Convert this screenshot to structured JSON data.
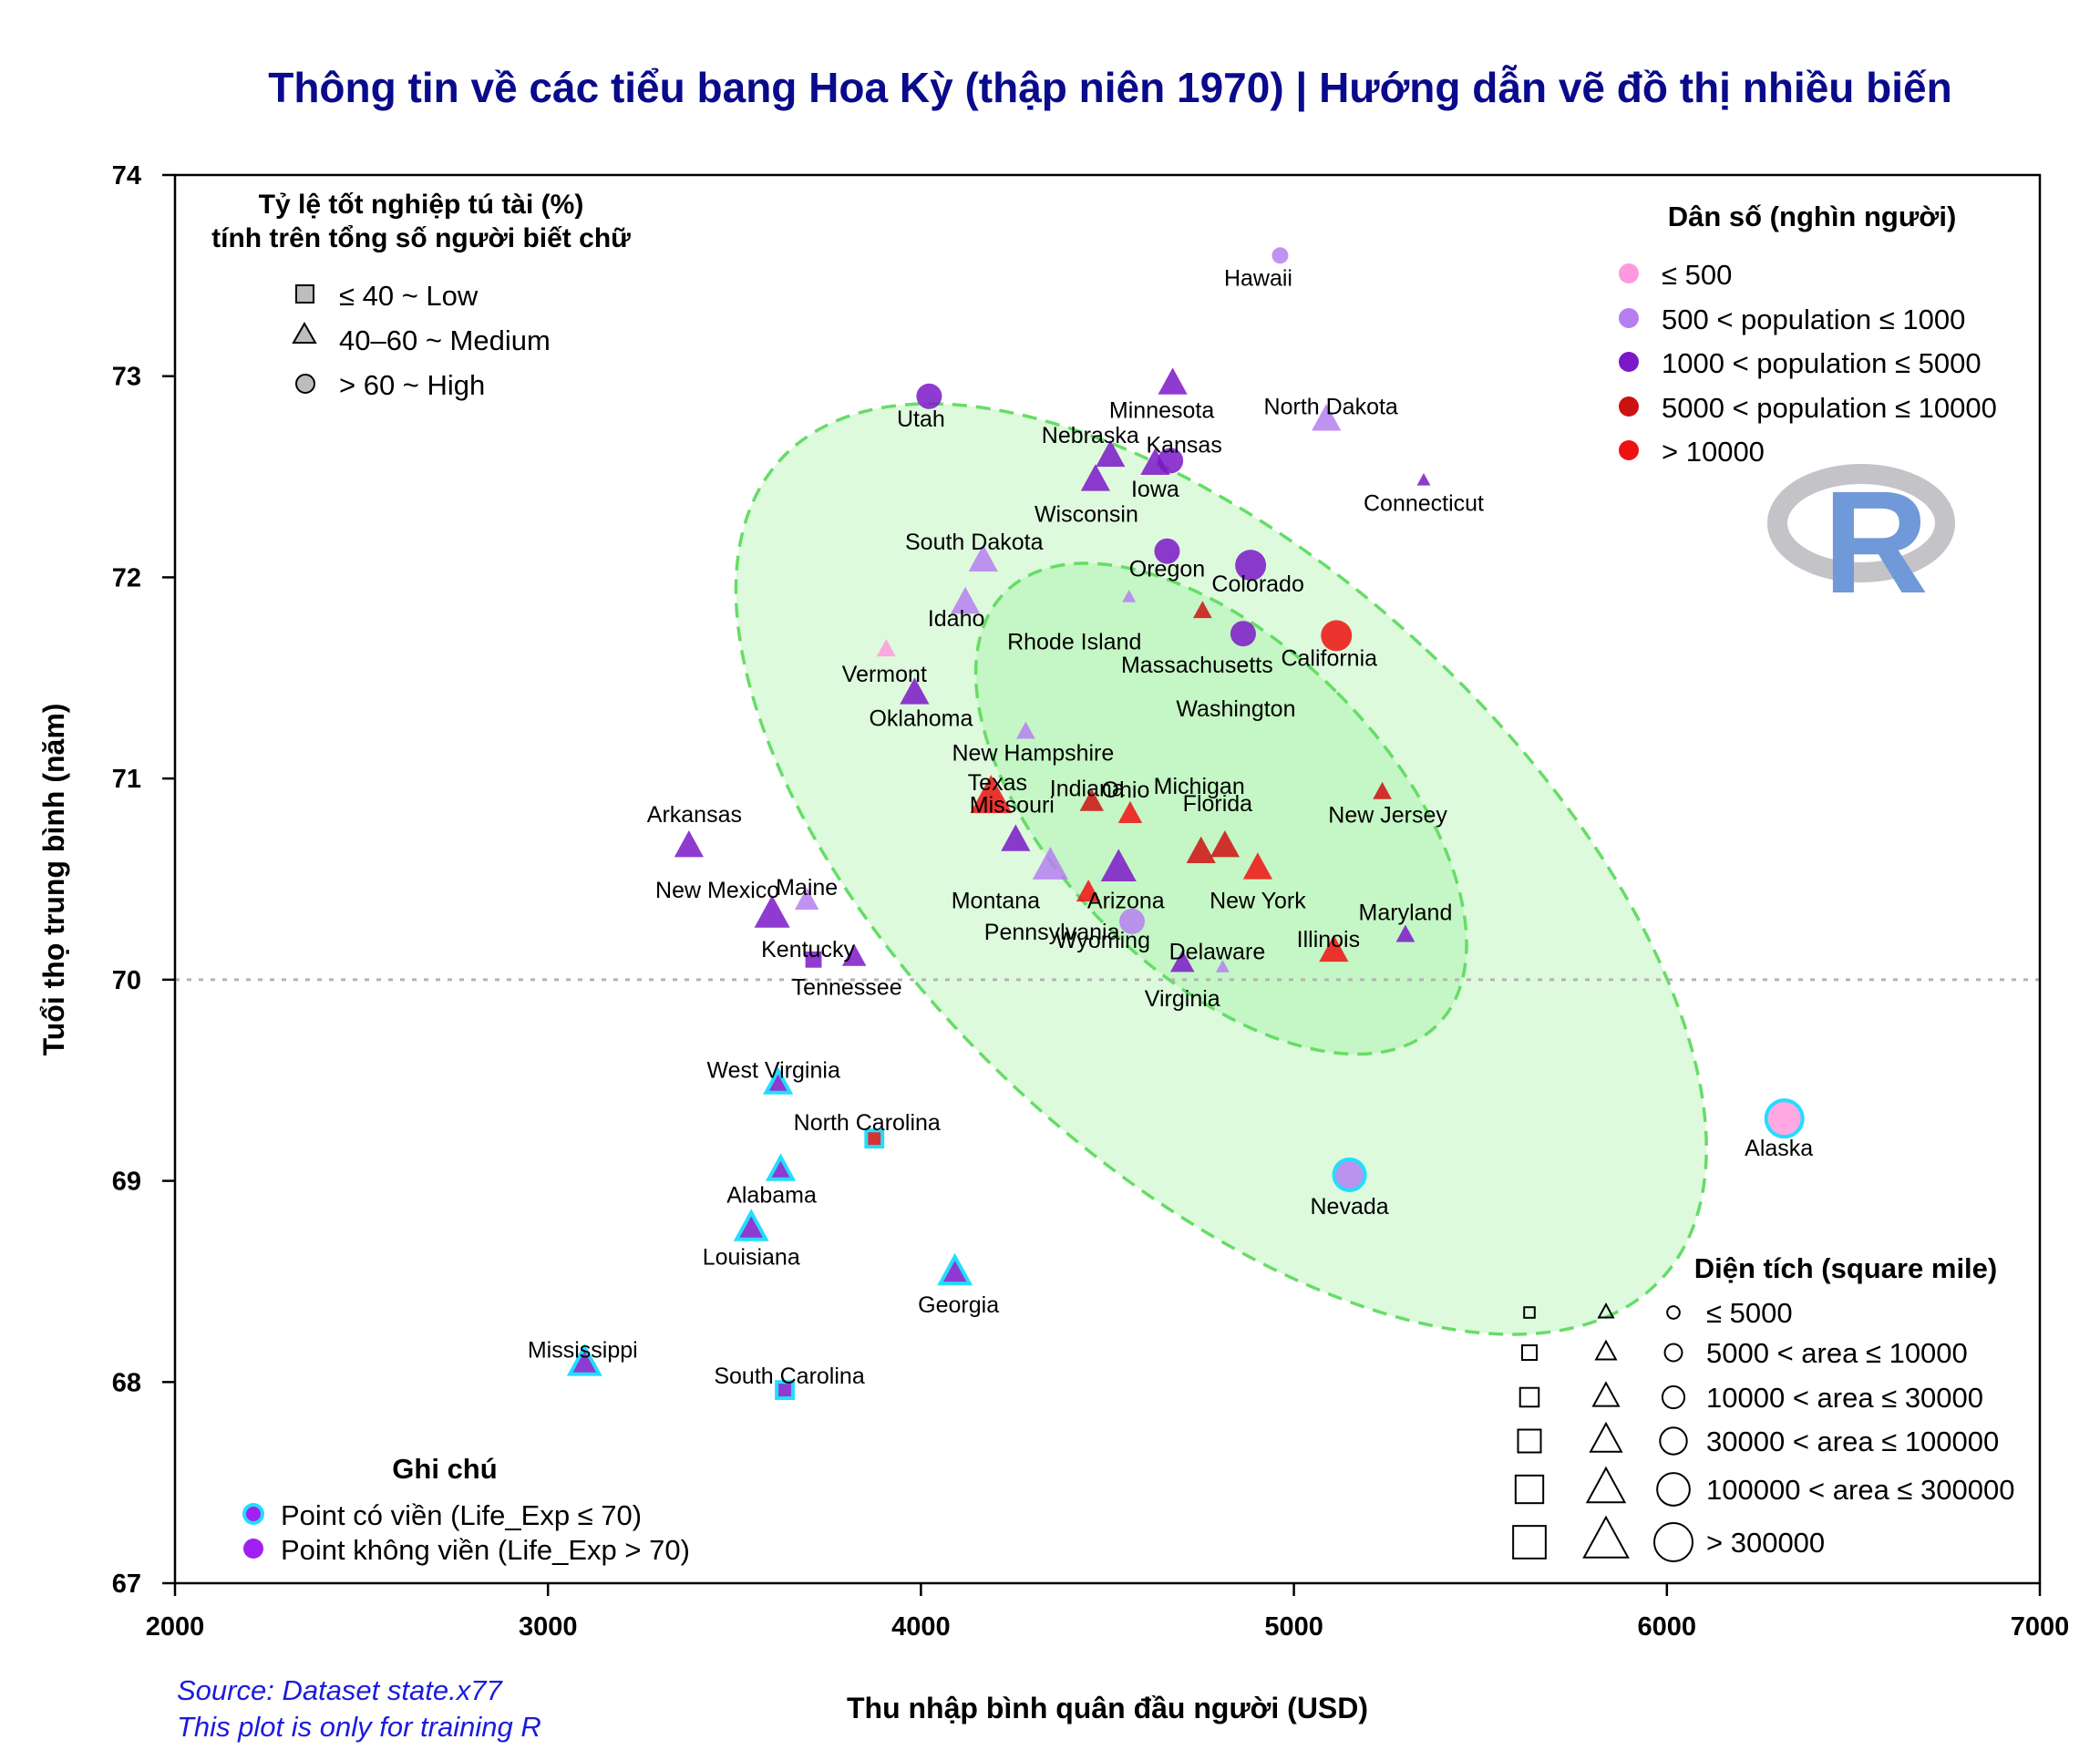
{
  "chart_data": {
    "type": "scatter",
    "title": "Thông tin về các tiểu bang Hoa Kỳ (thập niên 1970) | Hướng dẫn vẽ đồ thị nhiều biến",
    "xlabel": "Thu nhập bình quân đầu người (USD)",
    "ylabel": "Tuổi thọ trung bình (năm)",
    "xlim": [
      2000,
      7000
    ],
    "ylim": [
      67,
      74
    ],
    "x_ticks": [
      "2000",
      "3000",
      "4000",
      "5000",
      "6000",
      "7000"
    ],
    "y_ticks": [
      "67",
      "68",
      "69",
      "70",
      "71",
      "72",
      "73",
      "74"
    ],
    "reference_line_y": 70,
    "grid": false,
    "source_lines": [
      "Source: Dataset state.x77",
      "This plot is only for training R"
    ],
    "logo": "R",
    "colors": {
      "pop_le_500": "#ff99dd",
      "pop_500_1000": "#b57ff0",
      "pop_1000_5000": "#7b18c8",
      "pop_5000_10000": "#cc1111",
      "pop_gt_10000": "#ee1111",
      "outline_low_life": "#22ddff",
      "ellipse_fill": "#90ee90",
      "ellipse_stroke": "#66dd66"
    },
    "legend_grad": {
      "title_line1": "Tỷ lệ tốt nghiệp tú tài (%)",
      "title_line2": "tính trên tổng số người biết chữ",
      "position": "top-left",
      "items": [
        {
          "shape": "square",
          "label": "≤ 40 ~ Low"
        },
        {
          "shape": "triangle",
          "label": "40–60 ~ Medium"
        },
        {
          "shape": "circle",
          "label": "> 60 ~ High"
        }
      ]
    },
    "legend_pop": {
      "title": "Dân số (nghìn người)",
      "position": "top-right",
      "items": [
        {
          "color": "#ff99dd",
          "label": "≤ 500"
        },
        {
          "color": "#b57ff0",
          "label": "500 < population ≤ 1000"
        },
        {
          "color": "#7b18c8",
          "label": "1000 < population ≤ 5000"
        },
        {
          "color": "#cc1111",
          "label": "5000 < population ≤ 10000"
        },
        {
          "color": "#ee1111",
          "label": "> 10000"
        }
      ]
    },
    "legend_area": {
      "title": "Diện tích (square mile)",
      "position": "bottom-right",
      "items": [
        {
          "size": 1,
          "label": "≤ 5000"
        },
        {
          "size": 2,
          "label": "5000 < area ≤ 10000"
        },
        {
          "size": 3,
          "label": "10000 < area ≤ 30000"
        },
        {
          "size": 4,
          "label": "30000 < area ≤ 100000"
        },
        {
          "size": 5,
          "label": "100000 < area ≤ 300000"
        },
        {
          "size": 6,
          "label": "> 300000"
        }
      ]
    },
    "legend_note": {
      "title": "Ghi chú",
      "position": "bottom-left",
      "items": [
        {
          "outlined": true,
          "label": "Point có viền (Life_Exp ≤ 70)"
        },
        {
          "outlined": false,
          "label": "Point không viền (Life_Exp > 70)"
        }
      ]
    },
    "ellipses": [
      {
        "cx": 4805,
        "cy": 70.55,
        "rx_income": 805,
        "ry_life": 2.99,
        "angle_deg": 47
      },
      {
        "cx": 4805,
        "cy": 70.85,
        "rx_income": 440,
        "ry_life": 1.52,
        "angle_deg": 45
      }
    ],
    "points": [
      {
        "state": "Alabama",
        "income": 3624,
        "life_exp": 69.05,
        "grad": "medium",
        "pop": 3,
        "area": 3
      },
      {
        "state": "Alaska",
        "income": 6315,
        "life_exp": 69.31,
        "grad": "high",
        "pop": 1,
        "area": 6
      },
      {
        "state": "Arizona",
        "income": 4530,
        "life_exp": 70.55,
        "grad": "medium",
        "pop": 3,
        "area": 5
      },
      {
        "state": "Arkansas",
        "income": 3378,
        "life_exp": 70.66,
        "grad": "medium",
        "pop": 3,
        "area": 4
      },
      {
        "state": "California",
        "income": 5114,
        "life_exp": 71.71,
        "grad": "high",
        "pop": 5,
        "area": 5
      },
      {
        "state": "Colorado",
        "income": 4884,
        "life_exp": 72.06,
        "grad": "high",
        "pop": 3,
        "area": 5
      },
      {
        "state": "Connecticut",
        "income": 5348,
        "life_exp": 72.48,
        "grad": "medium",
        "pop": 3,
        "area": 1
      },
      {
        "state": "Delaware",
        "income": 4809,
        "life_exp": 70.06,
        "grad": "medium",
        "pop": 2,
        "area": 1
      },
      {
        "state": "Florida",
        "income": 4815,
        "life_exp": 70.66,
        "grad": "medium",
        "pop": 4,
        "area": 4
      },
      {
        "state": "Georgia",
        "income": 4091,
        "life_exp": 68.54,
        "grad": "medium",
        "pop": 3,
        "area": 4
      },
      {
        "state": "Hawaii",
        "income": 4963,
        "life_exp": 73.6,
        "grad": "high",
        "pop": 2,
        "area": 2
      },
      {
        "state": "Idaho",
        "income": 4119,
        "life_exp": 71.87,
        "grad": "medium",
        "pop": 2,
        "area": 4
      },
      {
        "state": "Illinois",
        "income": 5107,
        "life_exp": 70.14,
        "grad": "medium",
        "pop": 5,
        "area": 4
      },
      {
        "state": "Indiana",
        "income": 4458,
        "life_exp": 70.88,
        "grad": "medium",
        "pop": 4,
        "area": 3
      },
      {
        "state": "Iowa",
        "income": 4628,
        "life_exp": 72.56,
        "grad": "medium",
        "pop": 3,
        "area": 4
      },
      {
        "state": "Kansas",
        "income": 4669,
        "life_exp": 72.58,
        "grad": "high",
        "pop": 3,
        "area": 4
      },
      {
        "state": "Kentucky",
        "income": 3712,
        "life_exp": 70.1,
        "grad": "low",
        "pop": 3,
        "area": 3
      },
      {
        "state": "Louisiana",
        "income": 3545,
        "life_exp": 68.76,
        "grad": "medium",
        "pop": 3,
        "area": 4
      },
      {
        "state": "Maine",
        "income": 3694,
        "life_exp": 70.39,
        "grad": "medium",
        "pop": 2,
        "area": 3
      },
      {
        "state": "Maryland",
        "income": 5299,
        "life_exp": 70.22,
        "grad": "medium",
        "pop": 3,
        "area": 2
      },
      {
        "state": "Massachusetts",
        "income": 4755,
        "life_exp": 71.83,
        "grad": "medium",
        "pop": 4,
        "area": 2
      },
      {
        "state": "Michigan",
        "income": 4751,
        "life_exp": 70.63,
        "grad": "medium",
        "pop": 4,
        "area": 4
      },
      {
        "state": "Minnesota",
        "income": 4675,
        "life_exp": 72.96,
        "grad": "medium",
        "pop": 3,
        "area": 4
      },
      {
        "state": "Mississippi",
        "income": 3098,
        "life_exp": 68.09,
        "grad": "medium",
        "pop": 3,
        "area": 4
      },
      {
        "state": "Missouri",
        "income": 4254,
        "life_exp": 70.69,
        "grad": "medium",
        "pop": 3,
        "area": 4
      },
      {
        "state": "Montana",
        "income": 4347,
        "life_exp": 70.56,
        "grad": "medium",
        "pop": 2,
        "area": 5
      },
      {
        "state": "Nebraska",
        "income": 4508,
        "life_exp": 72.6,
        "grad": "medium",
        "pop": 3,
        "area": 4
      },
      {
        "state": "Nevada",
        "income": 5149,
        "life_exp": 69.03,
        "grad": "high",
        "pop": 2,
        "area": 5
      },
      {
        "state": "New Hampshire",
        "income": 4281,
        "life_exp": 71.23,
        "grad": "medium",
        "pop": 2,
        "area": 2
      },
      {
        "state": "New Jersey",
        "income": 5237,
        "life_exp": 70.93,
        "grad": "medium",
        "pop": 4,
        "area": 2
      },
      {
        "state": "New Mexico",
        "income": 3601,
        "life_exp": 70.32,
        "grad": "medium",
        "pop": 3,
        "area": 5
      },
      {
        "state": "New York",
        "income": 4903,
        "life_exp": 70.55,
        "grad": "medium",
        "pop": 5,
        "area": 4
      },
      {
        "state": "North Carolina",
        "income": 3875,
        "life_exp": 69.21,
        "grad": "low",
        "pop": 4,
        "area": 3
      },
      {
        "state": "North Dakota",
        "income": 5087,
        "life_exp": 72.78,
        "grad": "medium",
        "pop": 2,
        "area": 4
      },
      {
        "state": "Ohio",
        "income": 4561,
        "life_exp": 70.82,
        "grad": "medium",
        "pop": 5,
        "area": 3
      },
      {
        "state": "Oklahoma",
        "income": 3983,
        "life_exp": 71.42,
        "grad": "medium",
        "pop": 3,
        "area": 4
      },
      {
        "state": "Oregon",
        "income": 4660,
        "life_exp": 72.13,
        "grad": "high",
        "pop": 3,
        "area": 4
      },
      {
        "state": "Pennsylvania",
        "income": 4449,
        "life_exp": 70.43,
        "grad": "medium",
        "pop": 5,
        "area": 3
      },
      {
        "state": "Rhode Island",
        "income": 4558,
        "life_exp": 71.9,
        "grad": "medium",
        "pop": 2,
        "area": 1
      },
      {
        "state": "South Carolina",
        "income": 3635,
        "life_exp": 67.96,
        "grad": "low",
        "pop": 3,
        "area": 3
      },
      {
        "state": "South Dakota",
        "income": 4167,
        "life_exp": 72.08,
        "grad": "medium",
        "pop": 2,
        "area": 4
      },
      {
        "state": "Tennessee",
        "income": 3821,
        "life_exp": 70.11,
        "grad": "medium",
        "pop": 3,
        "area": 3
      },
      {
        "state": "Texas",
        "income": 4188,
        "life_exp": 70.9,
        "grad": "medium",
        "pop": 5,
        "area": 6
      },
      {
        "state": "Utah",
        "income": 4022,
        "life_exp": 72.9,
        "grad": "high",
        "pop": 3,
        "area": 4
      },
      {
        "state": "Vermont",
        "income": 3907,
        "life_exp": 71.64,
        "grad": "medium",
        "pop": 1,
        "area": 2
      },
      {
        "state": "Virginia",
        "income": 4701,
        "life_exp": 70.08,
        "grad": "medium",
        "pop": 3,
        "area": 3
      },
      {
        "state": "Washington",
        "income": 4864,
        "life_exp": 71.72,
        "grad": "high",
        "pop": 3,
        "area": 4
      },
      {
        "state": "West Virginia",
        "income": 3617,
        "life_exp": 69.48,
        "grad": "medium",
        "pop": 3,
        "area": 3
      },
      {
        "state": "Wisconsin",
        "income": 4468,
        "life_exp": 72.48,
        "grad": "medium",
        "pop": 3,
        "area": 4
      },
      {
        "state": "Wyoming",
        "income": 4566,
        "life_exp": 70.29,
        "grad": "high",
        "pop": 2,
        "area": 4
      }
    ],
    "label_offsets": {
      "Alabama": [
        -10,
        26
      ],
      "Alaska": [
        -6,
        32
      ],
      "Arizona": [
        8,
        34
      ],
      "Arkansas": [
        6,
        -36
      ],
      "California": [
        -8,
        24
      ],
      "Colorado": [
        8,
        20
      ],
      "Connecticut": [
        0,
        24
      ],
      "Delaware": [
        -6,
        -18
      ],
      "Florida": [
        -8,
        -48
      ],
      "Georgia": [
        4,
        34
      ],
      "Hawaii": [
        -24,
        24
      ],
      "Idaho": [
        -10,
        16
      ],
      "Illinois": [
        -6,
        -14
      ],
      "Indiana": [
        -5,
        -16
      ],
      "Iowa": [
        0,
        26
      ],
      "Kansas": [
        15,
        -18
      ],
      "Kentucky": [
        -6,
        -12
      ],
      "Louisiana": [
        0,
        30
      ],
      "Maine": [
        0,
        -16
      ],
      "Maryland": [
        0,
        -26
      ],
      "Massachusetts": [
        -6,
        58
      ],
      "Michigan": [
        -2,
        -74
      ],
      "Minnesota": [
        -12,
        28
      ],
      "Mississippi": [
        -2,
        -16
      ],
      "Missouri": [
        -4,
        -40
      ],
      "Montana": [
        -60,
        36
      ],
      "Nebraska": [
        -22,
        -24
      ],
      "Nevada": [
        0,
        34
      ],
      "New Hampshire": [
        8,
        22
      ],
      "New Jersey": [
        6,
        24
      ],
      "New Mexico": [
        -60,
        -28
      ],
      "New York": [
        0,
        34
      ],
      "North Carolina": [
        -8,
        -18
      ],
      "North Dakota": [
        5,
        -16
      ],
      "Ohio": [
        -5,
        -28
      ],
      "Oklahoma": [
        7,
        26
      ],
      "Oregon": [
        0,
        19
      ],
      "Pennsylvania": [
        -40,
        42
      ],
      "Rhode Island": [
        -60,
        48
      ],
      "South Carolina": [
        5,
        -16
      ],
      "South Dakota": [
        -10,
        -22
      ],
      "Tennessee": [
        -8,
        32
      ],
      "Texas": [
        7,
        -18
      ],
      "Utah": [
        -9,
        24
      ],
      "Vermont": [
        -2,
        26
      ],
      "Virginia": [
        0,
        38
      ],
      "Washington": [
        -8,
        82
      ],
      "West Virginia": [
        -5,
        -16
      ],
      "Wisconsin": [
        -10,
        36
      ],
      "Wyoming": [
        -32,
        20
      ]
    }
  }
}
